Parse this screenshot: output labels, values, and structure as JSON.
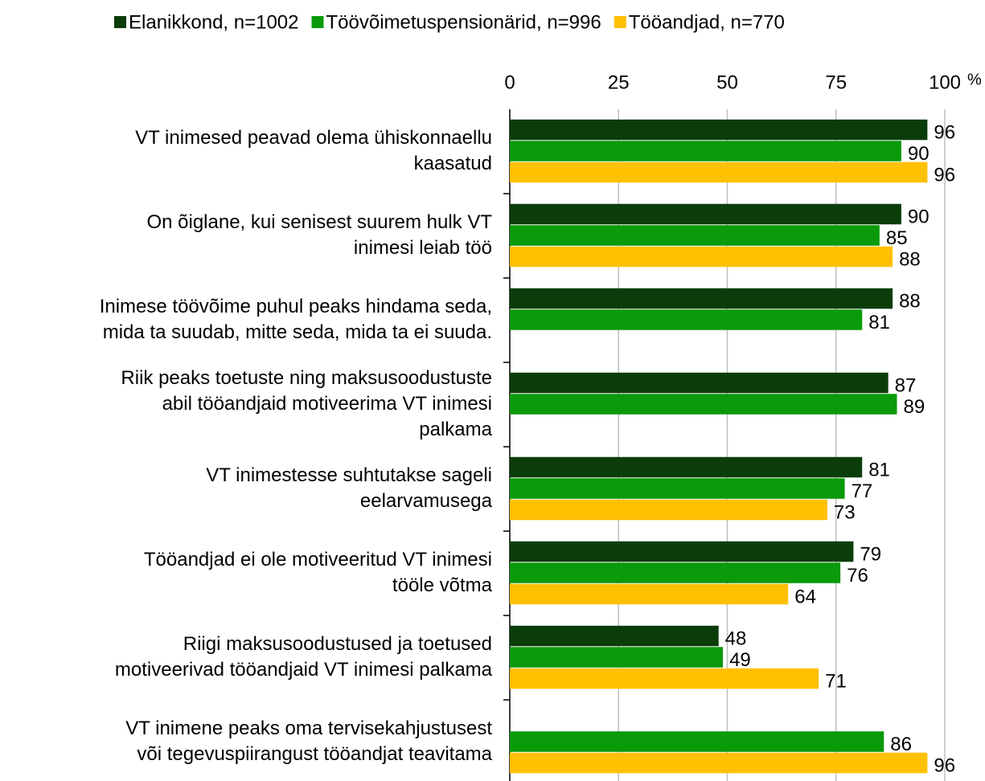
{
  "chart_data": {
    "type": "hbar",
    "unit": "%",
    "categories": [
      [
        "VT inimesed peavad olema ühiskonnaellu",
        "kaasatud"
      ],
      [
        "On õiglane, kui senisest suurem hulk VT",
        "inimesi leiab töö"
      ],
      [
        "Inimese töövõime puhul peaks hindama seda,",
        "mida ta suudab, mitte seda, mida ta ei suuda."
      ],
      [
        "Riik peaks toetuste ning maksusoodustuste",
        "abil tööandjaid motiveerima VT inimesi",
        "palkama"
      ],
      [
        "VT inimestesse suhtutakse sageli",
        "eelarvamusega"
      ],
      [
        "Tööandjad ei ole motiveeritud VT inimesi",
        "tööle võtma"
      ],
      [
        "Riigi maksusoodustused ja toetused",
        "motiveerivad tööandjaid VT inimesi palkama"
      ],
      [
        "VT inimene peaks oma tervisekahjustusest",
        "või tegevuspiirangust tööandjat teavitama"
      ]
    ],
    "series": [
      {
        "name": "Elanikkond, n=1002",
        "color": "#0b3d0b",
        "values": [
          96,
          90,
          88,
          87,
          81,
          79,
          48,
          null
        ]
      },
      {
        "name": "Töövõimetuspensionärid, n=996",
        "color": "#0a9a0a",
        "values": [
          90,
          85,
          81,
          89,
          77,
          76,
          49,
          86
        ]
      },
      {
        "name": "Tööandjad, n=770",
        "color": "#ffc000",
        "values": [
          96,
          88,
          null,
          null,
          73,
          64,
          71,
          96
        ]
      }
    ],
    "xlim": [
      0,
      100
    ],
    "xticks": [
      0,
      25,
      50,
      75,
      100
    ],
    "grid": true
  }
}
